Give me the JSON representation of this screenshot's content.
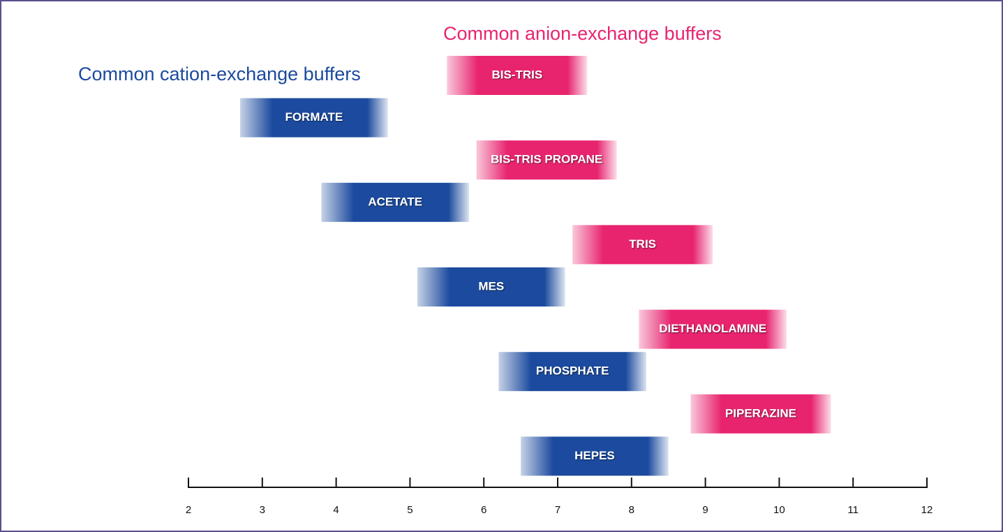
{
  "chart_data": {
    "type": "range-bar",
    "xlim": [
      2,
      12
    ],
    "xticks": [
      2,
      3,
      4,
      5,
      6,
      7,
      8,
      9,
      10,
      11,
      12
    ],
    "series": [
      {
        "name": "Common anion-exchange buffers",
        "color": "#e8246f",
        "categories": [
          "BIS-TRIS",
          "BIS-TRIS PROPANE",
          "TRIS",
          "DIETHANOLAMINE",
          "PIPERAZINE"
        ],
        "low": [
          5.5,
          5.9,
          7.2,
          8.1,
          8.8
        ],
        "high": [
          7.4,
          7.8,
          9.1,
          10.1,
          10.7
        ]
      },
      {
        "name": "Common cation-exchange buffers",
        "color": "#1b4a9e",
        "categories": [
          "FORMATE",
          "ACETATE",
          "MES",
          "PHOSPHATE",
          "HEPES"
        ],
        "low": [
          2.7,
          3.8,
          5.1,
          6.2,
          6.5
        ],
        "high": [
          4.7,
          5.8,
          7.1,
          8.2,
          8.5
        ]
      }
    ]
  }
}
